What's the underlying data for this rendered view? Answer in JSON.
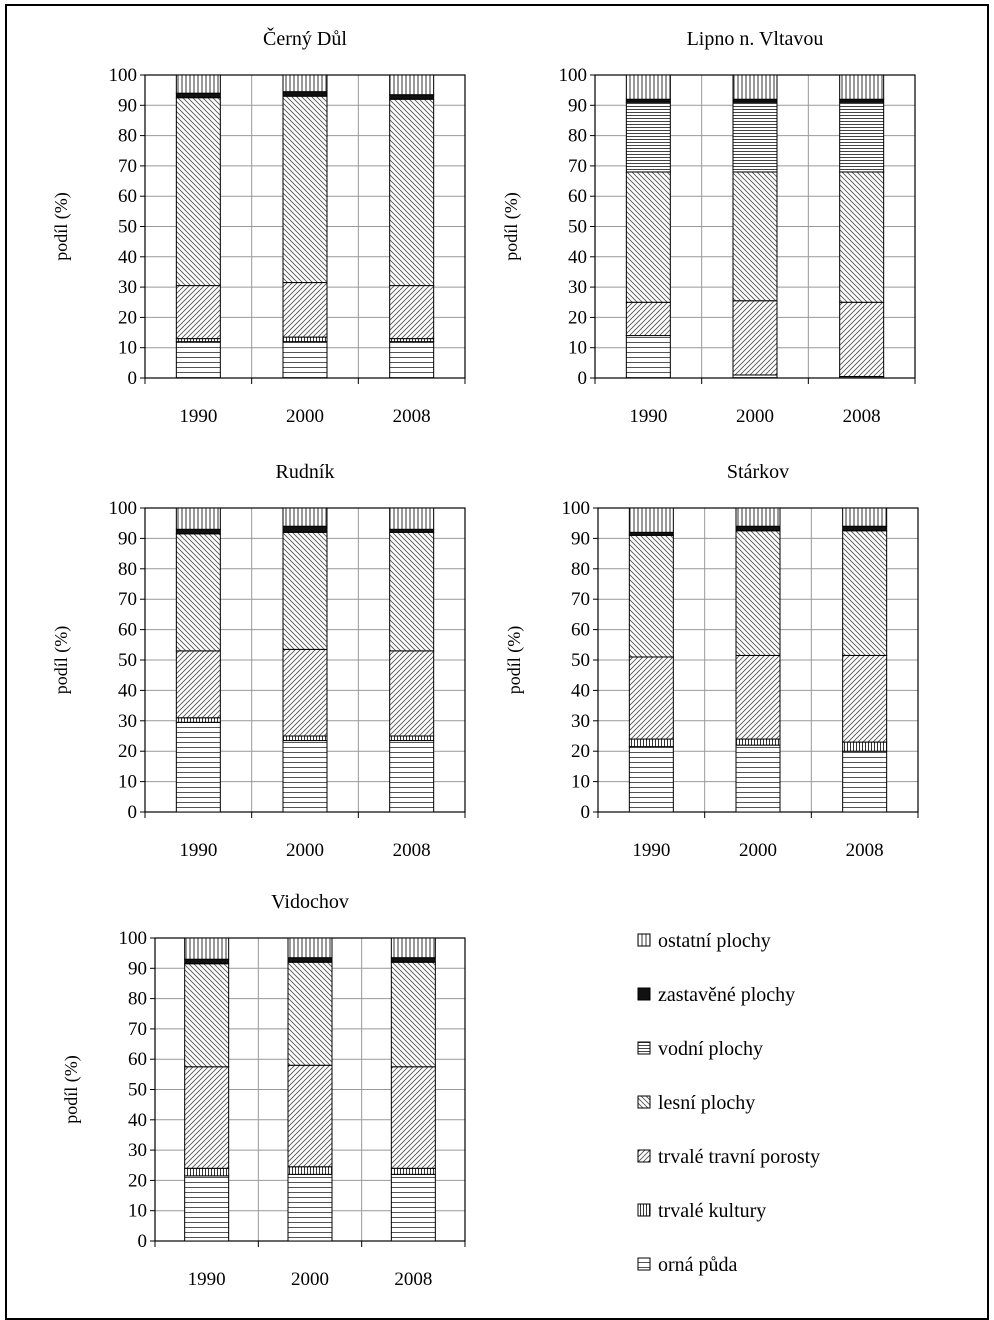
{
  "series_legend": [
    {
      "key": "ostatni",
      "label": "ostatní plochy",
      "pattern": "vstripes"
    },
    {
      "key": "zastavene",
      "label": "zastavěné plochy",
      "pattern": "solid"
    },
    {
      "key": "vodni",
      "label": "vodní plochy",
      "pattern": "hstripes-dense"
    },
    {
      "key": "lesni",
      "label": "lesní plochy",
      "pattern": "diag-back"
    },
    {
      "key": "trvale_travni",
      "label": "trvalé travní porosty",
      "pattern": "diag-fwd"
    },
    {
      "key": "trvale_kultury",
      "label": "trvalé kultury",
      "pattern": "vstripes-dense"
    },
    {
      "key": "orna",
      "label": "orná půda",
      "pattern": "hstripes"
    }
  ],
  "chart_data": [
    {
      "type": "bar",
      "stacked": true,
      "title": "Černý Důl",
      "categories": [
        "1990",
        "2000",
        "2008"
      ],
      "ylabel": "podíl (%)",
      "ylim": [
        0,
        100
      ],
      "yticks": [
        0,
        10,
        20,
        30,
        40,
        50,
        60,
        70,
        80,
        90,
        100
      ],
      "series": [
        {
          "name": "orná půda",
          "values": [
            12,
            12,
            12
          ]
        },
        {
          "name": "trvalé kultury",
          "values": [
            1,
            1.5,
            1
          ]
        },
        {
          "name": "trvalé travní porosty",
          "values": [
            17.5,
            18,
            17.5
          ]
        },
        {
          "name": "lesní plochy",
          "values": [
            62,
            61.5,
            61.5
          ]
        },
        {
          "name": "vodní plochy",
          "values": [
            0,
            0,
            0
          ]
        },
        {
          "name": "zastavěné plochy",
          "values": [
            1.5,
            1.5,
            1.5
          ]
        },
        {
          "name": "ostatní plochy",
          "values": [
            6,
            5.5,
            6.5
          ]
        }
      ]
    },
    {
      "type": "bar",
      "stacked": true,
      "title": "Lipno n. Vltavou",
      "categories": [
        "1990",
        "2000",
        "2008"
      ],
      "ylabel": "podíl (%)",
      "ylim": [
        0,
        100
      ],
      "yticks": [
        0,
        10,
        20,
        30,
        40,
        50,
        60,
        70,
        80,
        90,
        100
      ],
      "series": [
        {
          "name": "orná půda",
          "values": [
            14,
            1,
            0.5
          ]
        },
        {
          "name": "trvalé kultury",
          "values": [
            0,
            0,
            0
          ]
        },
        {
          "name": "trvalé travní porosty",
          "values": [
            11,
            24.5,
            24.5
          ]
        },
        {
          "name": "lesní plochy",
          "values": [
            43,
            42.5,
            43
          ]
        },
        {
          "name": "vodní plochy",
          "values": [
            23,
            23,
            23
          ]
        },
        {
          "name": "zastavěné plochy",
          "values": [
            1,
            1,
            1
          ]
        },
        {
          "name": "ostatní plochy",
          "values": [
            8,
            8,
            8
          ]
        }
      ]
    },
    {
      "type": "bar",
      "stacked": true,
      "title": "Rudník",
      "categories": [
        "1990",
        "2000",
        "2008"
      ],
      "ylabel": "podíl (%)",
      "ylim": [
        0,
        100
      ],
      "yticks": [
        0,
        10,
        20,
        30,
        40,
        50,
        60,
        70,
        80,
        90,
        100
      ],
      "series": [
        {
          "name": "orná půda",
          "values": [
            29.5,
            23.5,
            23.5
          ]
        },
        {
          "name": "trvalé kultury",
          "values": [
            1.5,
            1.5,
            1.5
          ]
        },
        {
          "name": "trvalé travní porosty",
          "values": [
            22,
            28.5,
            28
          ]
        },
        {
          "name": "lesní plochy",
          "values": [
            38.5,
            38.5,
            39
          ]
        },
        {
          "name": "vodní plochy",
          "values": [
            0,
            0,
            0
          ]
        },
        {
          "name": "zastavěné plochy",
          "values": [
            1.5,
            2,
            1
          ]
        },
        {
          "name": "ostatní plochy",
          "values": [
            7,
            6,
            7
          ]
        }
      ]
    },
    {
      "type": "bar",
      "stacked": true,
      "title": "Stárkov",
      "categories": [
        "1990",
        "2000",
        "2008"
      ],
      "ylabel": "podíl (%)",
      "ylim": [
        0,
        100
      ],
      "yticks": [
        0,
        10,
        20,
        30,
        40,
        50,
        60,
        70,
        80,
        90,
        100
      ],
      "series": [
        {
          "name": "orná půda",
          "values": [
            21.5,
            22,
            20
          ]
        },
        {
          "name": "trvalé kultury",
          "values": [
            2.5,
            2,
            3
          ]
        },
        {
          "name": "trvalé travní porosty",
          "values": [
            27,
            27.5,
            28.5
          ]
        },
        {
          "name": "lesní plochy",
          "values": [
            40,
            41,
            41
          ]
        },
        {
          "name": "vodní plochy",
          "values": [
            0,
            0,
            0
          ]
        },
        {
          "name": "zastavěné plochy",
          "values": [
            1,
            1.5,
            1.5
          ]
        },
        {
          "name": "ostatní plochy",
          "values": [
            8,
            6,
            6
          ]
        }
      ]
    },
    {
      "type": "bar",
      "stacked": true,
      "title": "Vidochov",
      "categories": [
        "1990",
        "2000",
        "2008"
      ],
      "ylabel": "podíl (%)",
      "ylim": [
        0,
        100
      ],
      "yticks": [
        0,
        10,
        20,
        30,
        40,
        50,
        60,
        70,
        80,
        90,
        100
      ],
      "series": [
        {
          "name": "orná půda",
          "values": [
            21.5,
            22,
            22
          ]
        },
        {
          "name": "trvalé kultury",
          "values": [
            2.5,
            2.5,
            2
          ]
        },
        {
          "name": "trvalé travní porosty",
          "values": [
            33.5,
            33.5,
            33.5
          ]
        },
        {
          "name": "lesní plochy",
          "values": [
            34,
            34,
            34.5
          ]
        },
        {
          "name": "vodní plochy",
          "values": [
            0,
            0,
            0
          ]
        },
        {
          "name": "zastavěné plochy",
          "values": [
            1.5,
            1.5,
            1.5
          ]
        },
        {
          "name": "ostatní plochy",
          "values": [
            7,
            6.5,
            6.5
          ]
        }
      ]
    }
  ]
}
